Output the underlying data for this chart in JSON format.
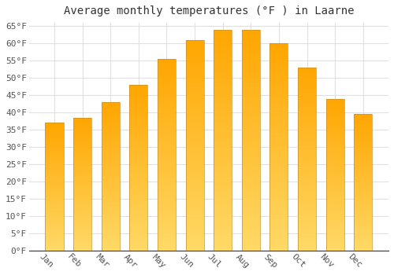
{
  "title": "Average monthly temperatures (°F ) in Laarne",
  "months": [
    "Jan",
    "Feb",
    "Mar",
    "Apr",
    "May",
    "Jun",
    "Jul",
    "Aug",
    "Sep",
    "Oct",
    "Nov",
    "Dec"
  ],
  "values": [
    37.0,
    38.5,
    43.0,
    48.0,
    55.5,
    61.0,
    64.0,
    64.0,
    60.0,
    53.0,
    44.0,
    39.5
  ],
  "bar_color_top": "#FFA500",
  "bar_color_bottom": "#FFD966",
  "bar_edge_color": "#C8922A",
  "background_color": "#FFFFFF",
  "grid_color": "#E0E0E0",
  "ytick_min": 0,
  "ytick_max": 65,
  "ytick_step": 5,
  "title_fontsize": 10,
  "tick_fontsize": 8,
  "xlabel_rotation": -45
}
